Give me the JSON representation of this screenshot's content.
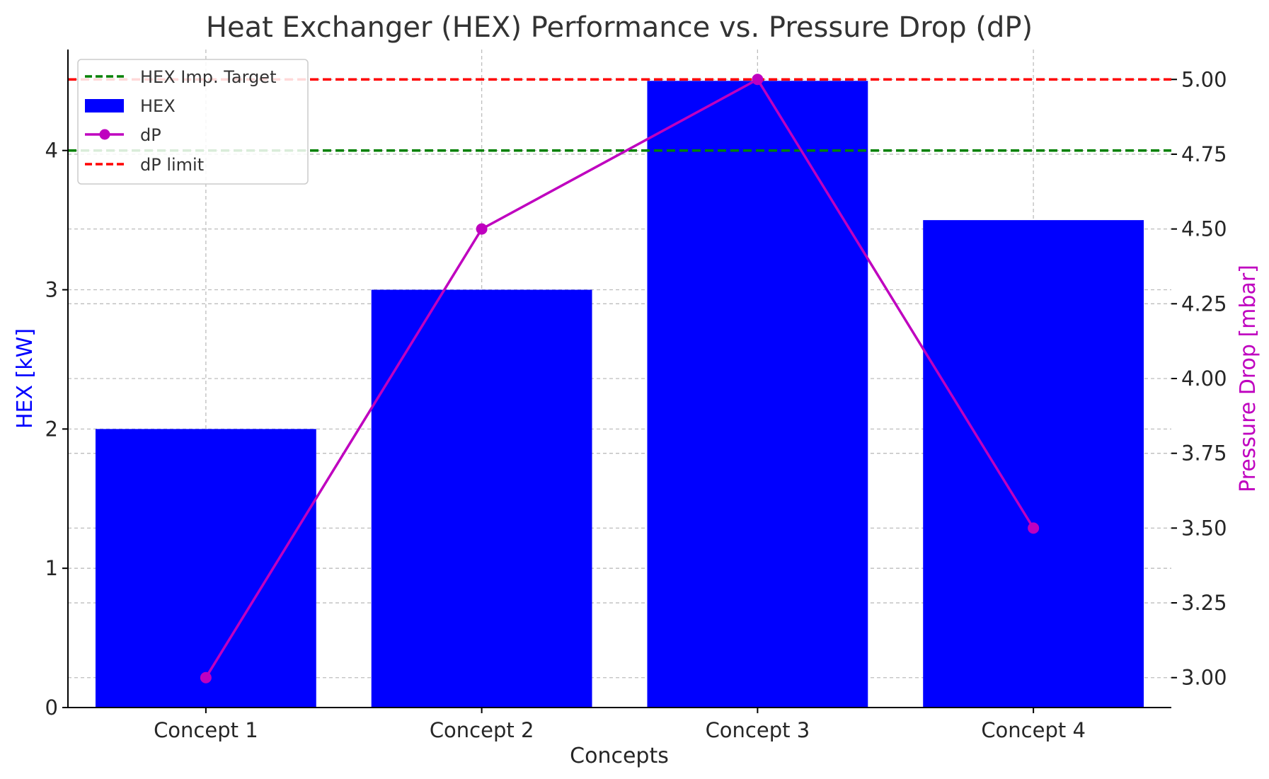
{
  "chart_data": {
    "type": "bar",
    "title": "Heat Exchanger (HEX) Performance vs. Pressure Drop (dP)",
    "xlabel": "Concepts",
    "categories": [
      "Concept 1",
      "Concept 2",
      "Concept 3",
      "Concept 4"
    ],
    "series": [
      {
        "name": "HEX",
        "type": "bar",
        "axis": "left",
        "values": [
          2,
          3,
          4.5,
          3.5
        ],
        "color": "#0000ff"
      },
      {
        "name": "dP",
        "type": "line",
        "axis": "right",
        "values": [
          3.0,
          4.5,
          5.0,
          3.5
        ],
        "color": "#bf00bf",
        "marker": "circle"
      }
    ],
    "reference_lines": [
      {
        "name": "HEX Imp. Target",
        "axis": "left",
        "value": 4,
        "color": "#008000",
        "style": "dashed"
      },
      {
        "name": "dP limit",
        "axis": "right",
        "value": 5.0,
        "color": "#ff0000",
        "style": "dashed"
      }
    ],
    "y_left": {
      "label": "HEX [kW]",
      "color": "#0000ff",
      "ylim": [
        0,
        4.725
      ],
      "ticks": [
        0,
        1,
        2,
        3,
        4
      ],
      "tick_labels": [
        "0",
        "1",
        "2",
        "3",
        "4"
      ]
    },
    "y_right": {
      "label": "Pressure Drop [mbar]",
      "color": "#bf00bf",
      "ylim": [
        2.9,
        5.1
      ],
      "ticks": [
        3.0,
        3.25,
        3.5,
        3.75,
        4.0,
        4.25,
        4.5,
        4.75,
        5.0
      ],
      "tick_labels": [
        "3.00",
        "3.25",
        "3.50",
        "3.75",
        "4.00",
        "4.25",
        "4.50",
        "4.75",
        "5.00"
      ]
    },
    "grid": true,
    "legend": {
      "placement": "top-left",
      "entries": [
        "HEX Imp. Target",
        "HEX",
        "dP",
        "dP limit"
      ]
    }
  }
}
